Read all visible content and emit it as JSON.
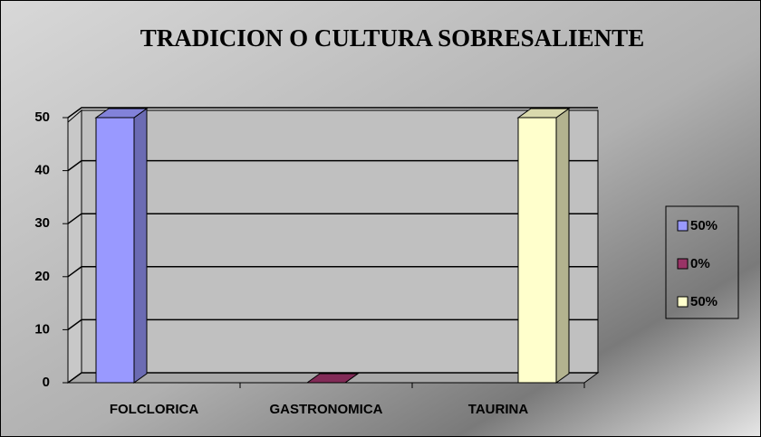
{
  "chart_data": {
    "type": "bar3d",
    "title": "TRADICION O CULTURA SOBRESALIENTE",
    "categories": [
      "FOLCLORICA",
      "GASTRONOMICA",
      "TAURINA"
    ],
    "series": [
      {
        "name": "50%",
        "color": "#9999ff",
        "values": [
          50,
          null,
          null
        ]
      },
      {
        "name": "0%",
        "color": "#993366",
        "values": [
          null,
          0,
          null
        ]
      },
      {
        "name": "50%",
        "color": "#ffffcc",
        "values": [
          null,
          null,
          50
        ]
      }
    ],
    "ylim": [
      0,
      50
    ],
    "yticks": [
      0,
      10,
      20,
      30,
      40,
      50
    ],
    "grid": true,
    "legend": "right"
  }
}
